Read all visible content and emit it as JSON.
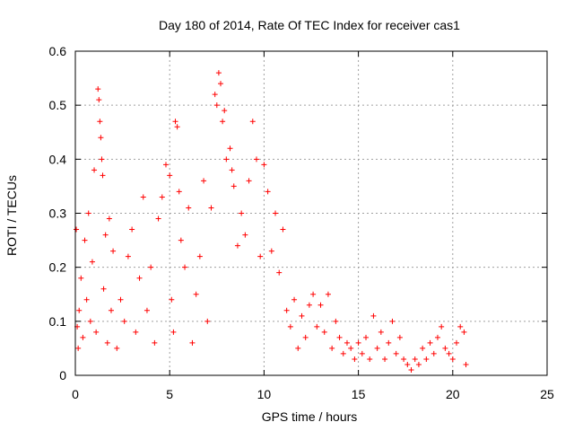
{
  "chart_data": {
    "type": "scatter",
    "title": "Day 180 of 2014, Rate Of TEC Index for receiver cas1",
    "xlabel": "GPS time / hours",
    "ylabel": "ROTI / TECUs",
    "xlim": [
      0,
      25
    ],
    "ylim": [
      0,
      0.6
    ],
    "xticks": [
      0,
      5,
      10,
      15,
      20,
      25
    ],
    "xtick_labels": [
      "0",
      "5",
      "10",
      "15",
      "20",
      "25"
    ],
    "yticks": [
      0,
      0.1,
      0.2,
      0.3,
      0.4,
      0.5,
      0.6
    ],
    "ytick_labels": [
      "0",
      "0.1",
      "0.2",
      "0.3",
      "0.4",
      "0.5",
      "0.6"
    ],
    "grid": true,
    "marker": "+",
    "color": "#ff0000",
    "series": [
      {
        "name": "ROTI",
        "points": [
          [
            0.05,
            0.27
          ],
          [
            0.1,
            0.09
          ],
          [
            0.15,
            0.05
          ],
          [
            0.2,
            0.12
          ],
          [
            0.3,
            0.18
          ],
          [
            0.4,
            0.07
          ],
          [
            0.5,
            0.25
          ],
          [
            0.6,
            0.14
          ],
          [
            0.7,
            0.3
          ],
          [
            0.8,
            0.1
          ],
          [
            0.9,
            0.21
          ],
          [
            1.0,
            0.38
          ],
          [
            1.1,
            0.08
          ],
          [
            1.2,
            0.53
          ],
          [
            1.25,
            0.51
          ],
          [
            1.3,
            0.47
          ],
          [
            1.35,
            0.44
          ],
          [
            1.4,
            0.4
          ],
          [
            1.45,
            0.37
          ],
          [
            1.5,
            0.16
          ],
          [
            1.6,
            0.26
          ],
          [
            1.7,
            0.06
          ],
          [
            1.8,
            0.29
          ],
          [
            1.9,
            0.12
          ],
          [
            2.0,
            0.23
          ],
          [
            2.2,
            0.05
          ],
          [
            2.4,
            0.14
          ],
          [
            2.6,
            0.1
          ],
          [
            2.8,
            0.22
          ],
          [
            3.0,
            0.27
          ],
          [
            3.2,
            0.08
          ],
          [
            3.4,
            0.18
          ],
          [
            3.6,
            0.33
          ],
          [
            3.8,
            0.12
          ],
          [
            4.0,
            0.2
          ],
          [
            4.2,
            0.06
          ],
          [
            4.4,
            0.29
          ],
          [
            4.6,
            0.33
          ],
          [
            4.8,
            0.39
          ],
          [
            5.0,
            0.37
          ],
          [
            5.1,
            0.14
          ],
          [
            5.2,
            0.08
          ],
          [
            5.3,
            0.47
          ],
          [
            5.4,
            0.46
          ],
          [
            5.5,
            0.34
          ],
          [
            5.6,
            0.25
          ],
          [
            5.8,
            0.2
          ],
          [
            6.0,
            0.31
          ],
          [
            6.2,
            0.06
          ],
          [
            6.4,
            0.15
          ],
          [
            6.6,
            0.22
          ],
          [
            6.8,
            0.36
          ],
          [
            7.0,
            0.1
          ],
          [
            7.2,
            0.31
          ],
          [
            7.4,
            0.52
          ],
          [
            7.5,
            0.5
          ],
          [
            7.6,
            0.56
          ],
          [
            7.7,
            0.54
          ],
          [
            7.8,
            0.47
          ],
          [
            7.9,
            0.49
          ],
          [
            8.0,
            0.4
          ],
          [
            8.2,
            0.42
          ],
          [
            8.3,
            0.38
          ],
          [
            8.4,
            0.35
          ],
          [
            8.6,
            0.24
          ],
          [
            8.8,
            0.3
          ],
          [
            9.0,
            0.26
          ],
          [
            9.2,
            0.36
          ],
          [
            9.4,
            0.47
          ],
          [
            9.6,
            0.4
          ],
          [
            9.8,
            0.22
          ],
          [
            10.0,
            0.39
          ],
          [
            10.2,
            0.34
          ],
          [
            10.4,
            0.23
          ],
          [
            10.6,
            0.3
          ],
          [
            10.8,
            0.19
          ],
          [
            11.0,
            0.27
          ],
          [
            11.2,
            0.12
          ],
          [
            11.4,
            0.09
          ],
          [
            11.6,
            0.14
          ],
          [
            11.8,
            0.05
          ],
          [
            12.0,
            0.11
          ],
          [
            12.2,
            0.07
          ],
          [
            12.4,
            0.13
          ],
          [
            12.6,
            0.15
          ],
          [
            12.8,
            0.09
          ],
          [
            13.0,
            0.13
          ],
          [
            13.2,
            0.08
          ],
          [
            13.4,
            0.15
          ],
          [
            13.6,
            0.05
          ],
          [
            13.8,
            0.1
          ],
          [
            14.0,
            0.07
          ],
          [
            14.2,
            0.04
          ],
          [
            14.4,
            0.06
          ],
          [
            14.6,
            0.05
          ],
          [
            14.8,
            0.03
          ],
          [
            15.0,
            0.06
          ],
          [
            15.2,
            0.04
          ],
          [
            15.4,
            0.07
          ],
          [
            15.6,
            0.03
          ],
          [
            15.8,
            0.11
          ],
          [
            16.0,
            0.05
          ],
          [
            16.2,
            0.08
          ],
          [
            16.4,
            0.03
          ],
          [
            16.6,
            0.06
          ],
          [
            16.8,
            0.1
          ],
          [
            17.0,
            0.04
          ],
          [
            17.2,
            0.07
          ],
          [
            17.4,
            0.03
          ],
          [
            17.6,
            0.02
          ],
          [
            17.8,
            0.01
          ],
          [
            18.0,
            0.03
          ],
          [
            18.2,
            0.02
          ],
          [
            18.4,
            0.05
          ],
          [
            18.6,
            0.03
          ],
          [
            18.8,
            0.06
          ],
          [
            19.0,
            0.04
          ],
          [
            19.2,
            0.07
          ],
          [
            19.4,
            0.09
          ],
          [
            19.6,
            0.05
          ],
          [
            19.8,
            0.04
          ],
          [
            20.0,
            0.03
          ],
          [
            20.2,
            0.06
          ],
          [
            20.4,
            0.09
          ],
          [
            20.6,
            0.08
          ],
          [
            20.7,
            0.02
          ]
        ]
      }
    ]
  }
}
